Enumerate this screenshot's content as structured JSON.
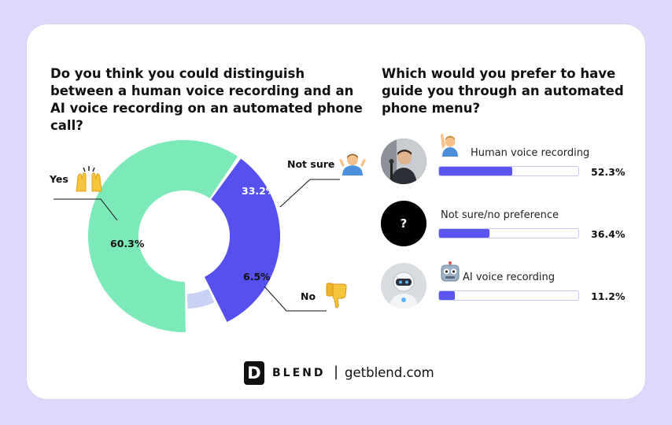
{
  "chart_data": [
    {
      "type": "pie",
      "title": "Do you think you could distinguish between a human voice recording and an AI voice recording on an automated phone call?",
      "slices": [
        {
          "label": "Yes",
          "value": 60.3,
          "display": "60.3%",
          "color": "#7ce9b8"
        },
        {
          "label": "Not sure",
          "value": 33.2,
          "display": "33.2%",
          "color": "#5651ee"
        },
        {
          "label": "No",
          "value": 6.5,
          "display": "6.5%",
          "color": "#c9d2f3"
        }
      ]
    },
    {
      "type": "bar",
      "title": "Which would you prefer to have guide you through an automated phone menu?",
      "categories": [
        "Human voice recording",
        "Not sure/no preference",
        "AI voice recording"
      ],
      "values": [
        52.3,
        36.4,
        11.2
      ],
      "display": [
        "52.3%",
        "36.4%",
        "11.2%"
      ],
      "color": "#5a54f0"
    }
  ],
  "footer": {
    "logo_letter": "D",
    "brand": "BLEND",
    "separator": "|",
    "site": "getblend.com"
  },
  "icons": {
    "yes": "raising-hands-icon",
    "not_sure": "shrugging-person-icon",
    "no": "thumbs-down-icon",
    "human": "person-raising-hand-icon",
    "ai": "robot-icon",
    "unsure_avatar_text": "?"
  }
}
